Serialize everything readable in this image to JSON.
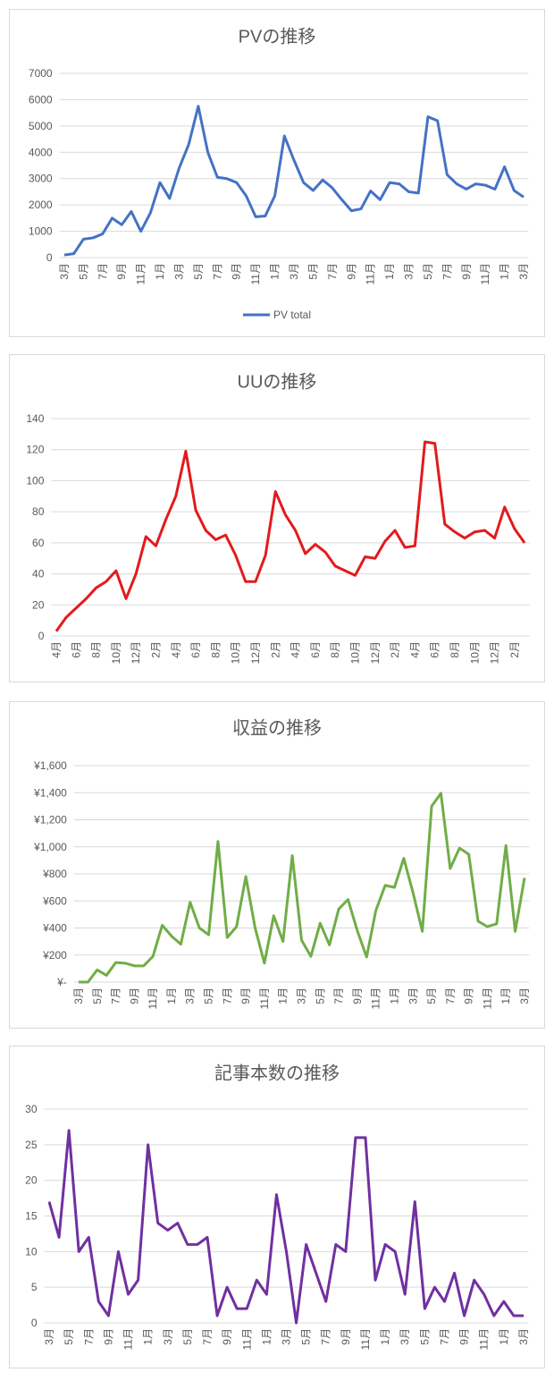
{
  "chart_data": [
    {
      "type": "line",
      "title": "PVの推移",
      "categories": [
        "3月",
        null,
        "5月",
        null,
        "7月",
        null,
        "9月",
        null,
        "11月",
        null,
        "1月",
        null,
        "3月",
        null,
        "5月",
        null,
        "7月",
        null,
        "9月",
        null,
        "11月",
        null,
        "1月",
        null,
        "3月",
        null,
        "5月",
        null,
        "7月",
        null,
        "9月",
        null,
        "11月",
        null,
        "1月",
        null,
        "3月",
        null,
        "5月",
        null,
        "7月",
        null,
        "9月",
        null,
        "11月",
        null,
        "1月",
        null,
        "3月"
      ],
      "series": [
        {
          "name": "PV total",
          "color": "#4472c4",
          "values": [
            100,
            150,
            700,
            750,
            900,
            1500,
            1250,
            1750,
            1000,
            1700,
            2850,
            2250,
            3400,
            4300,
            5750,
            4000,
            3050,
            3000,
            2850,
            2350,
            1550,
            1580,
            2350,
            4620,
            3700,
            2850,
            2550,
            2950,
            2650,
            2200,
            1780,
            1850,
            2530,
            2200,
            2850,
            2800,
            2500,
            2450,
            5350,
            5200,
            3150,
            2800,
            2600,
            2800,
            2750,
            2600,
            3450,
            2550,
            2300
          ]
        }
      ],
      "ylim": [
        0,
        7000
      ],
      "yticks": [
        0,
        1000,
        2000,
        3000,
        4000,
        5000,
        6000,
        7000
      ],
      "grid": true,
      "legend": "bottom"
    },
    {
      "type": "line",
      "title": "UUの推移",
      "categories": [
        "4月",
        null,
        "6月",
        null,
        "8月",
        null,
        "10月",
        null,
        "12月",
        null,
        "2月",
        null,
        "4月",
        null,
        "6月",
        null,
        "8月",
        null,
        "10月",
        null,
        "12月",
        null,
        "2月",
        null,
        "4月",
        null,
        "6月",
        null,
        "8月",
        null,
        "10月",
        null,
        "12月",
        null,
        "2月",
        null,
        "4月",
        null,
        "6月",
        null,
        "8月",
        null,
        "10月",
        null,
        "12月",
        null,
        "2月",
        null
      ],
      "values": [
        3,
        12,
        18,
        24,
        31,
        35,
        42,
        24,
        40,
        64,
        58,
        75,
        90,
        119,
        81,
        68,
        62,
        65,
        52,
        35,
        35,
        52,
        93,
        78,
        68,
        53,
        59,
        54,
        45,
        42,
        39,
        51,
        50,
        61,
        68,
        57,
        58,
        125,
        124,
        72,
        67,
        63,
        67,
        68,
        63,
        83,
        69,
        60
      ],
      "color": "#e31a1c",
      "ylim": [
        0,
        140
      ],
      "yticks": [
        0,
        20,
        40,
        60,
        80,
        100,
        120,
        140
      ],
      "grid": true
    },
    {
      "type": "line",
      "title": "収益の推移",
      "categories": [
        "3月",
        null,
        "5月",
        null,
        "7月",
        null,
        "9月",
        null,
        "11月",
        null,
        "1月",
        null,
        "3月",
        null,
        "5月",
        null,
        "7月",
        null,
        "9月",
        null,
        "11月",
        null,
        "1月",
        null,
        "3月",
        null,
        "5月",
        null,
        "7月",
        null,
        "9月",
        null,
        "11月",
        null,
        "1月",
        null,
        "3月",
        null,
        "5月",
        null,
        "7月",
        null,
        "9月",
        null,
        "11月",
        null,
        "1月",
        null,
        "3月"
      ],
      "values": [
        0,
        0,
        90,
        50,
        145,
        140,
        120,
        120,
        190,
        420,
        340,
        280,
        590,
        400,
        350,
        1040,
        330,
        410,
        780,
        400,
        140,
        490,
        300,
        935,
        310,
        190,
        435,
        275,
        540,
        610,
        380,
        185,
        530,
        715,
        700,
        915,
        660,
        375,
        1300,
        1395,
        840,
        990,
        945,
        450,
        410,
        430,
        1010,
        375,
        770
      ],
      "color": "#70ad47",
      "ylim": [
        0,
        1600
      ],
      "yticks": [
        {
          "value": 0,
          "label": "¥-"
        },
        {
          "value": 200,
          "label": "¥200"
        },
        {
          "value": 400,
          "label": "¥400"
        },
        {
          "value": 600,
          "label": "¥600"
        },
        {
          "value": 800,
          "label": "¥800"
        },
        {
          "value": 1000,
          "label": "¥1,000"
        },
        {
          "value": 1200,
          "label": "¥1,200"
        },
        {
          "value": 1400,
          "label": "¥1,400"
        },
        {
          "value": 1600,
          "label": "¥1,600"
        }
      ],
      "grid": true
    },
    {
      "type": "line",
      "title": "記事本数の推移",
      "categories": [
        "3月",
        null,
        "5月",
        null,
        "7月",
        null,
        "9月",
        null,
        "11月",
        null,
        "1月",
        null,
        "3月",
        null,
        "5月",
        null,
        "7月",
        null,
        "9月",
        null,
        "11月",
        null,
        "1月",
        null,
        "3月",
        null,
        "5月",
        null,
        "7月",
        null,
        "9月",
        null,
        "11月",
        null,
        "1月",
        null,
        "3月",
        null,
        "5月",
        null,
        "7月",
        null,
        "9月",
        null,
        "11月",
        null,
        "1月",
        null,
        "3月"
      ],
      "values": [
        17,
        12,
        27,
        10,
        12,
        3,
        1,
        10,
        4,
        6,
        25,
        14,
        13,
        14,
        11,
        11,
        12,
        1,
        5,
        2,
        2,
        6,
        4,
        18,
        10,
        0,
        11,
        7,
        3,
        11,
        10,
        26,
        26,
        6,
        11,
        10,
        4,
        17,
        2,
        5,
        3,
        7,
        1,
        6,
        4,
        1,
        3,
        1,
        1
      ],
      "color": "#7030a0",
      "ylim": [
        0,
        30
      ],
      "yticks": [
        0,
        5,
        10,
        15,
        20,
        25,
        30
      ],
      "grid": true
    }
  ]
}
